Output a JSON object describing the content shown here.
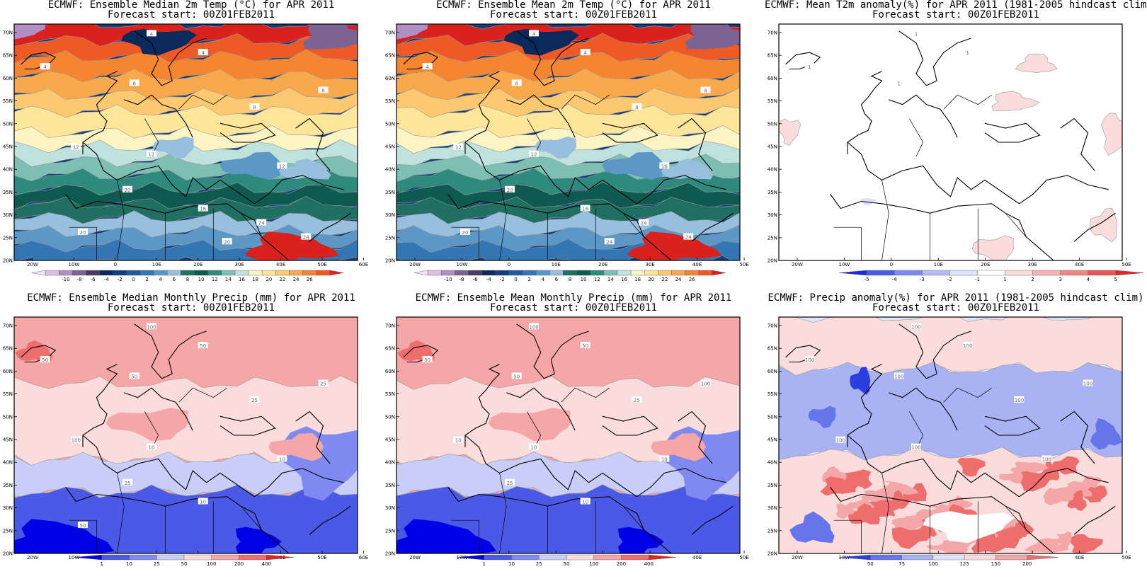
{
  "panels": [
    {
      "id": "temp-median",
      "title_line1": "ECMWF: Ensemble Median 2m Temp (°C) for APR 2011",
      "title_line2": "Forecast start: 00Z01FEB2011",
      "type": "temperature",
      "lon_labels": [
        "20W",
        "10W",
        "0",
        "10E",
        "20E",
        "30E",
        "40E",
        "50E",
        "60E"
      ],
      "lat_labels": [
        "20N",
        "25N",
        "30N",
        "35N",
        "40N",
        "45N",
        "50N",
        "55N",
        "60N",
        "65N",
        "70N"
      ],
      "contour_labels": [
        "4",
        "4",
        "4",
        "8",
        "8",
        "8",
        "12",
        "12",
        "12",
        "16",
        "20",
        "20",
        "20",
        "24",
        "24"
      ],
      "colorbar": {
        "labels": [
          "-10",
          "-8",
          "-6",
          "-4",
          "-2",
          "0",
          "2",
          "4",
          "6",
          "8",
          "10",
          "12",
          "14",
          "16",
          "18",
          "20",
          "22",
          "24",
          "26"
        ],
        "colors": [
          "#f3e4f3",
          "#dcbfe0",
          "#b18fc4",
          "#7d6393",
          "#4a3a62",
          "#0b2a5c",
          "#143d7c",
          "#1e5a9c",
          "#3276b4",
          "#5b98c8",
          "#98bfdd",
          "#1f6f62",
          "#0f5a50",
          "#2e8a7c",
          "#7dbfb3",
          "#bfe2dc",
          "#fdf4c4",
          "#fde59a",
          "#fcc970",
          "#f9a84c",
          "#f5862f",
          "#ee5a25",
          "#d9221e"
        ]
      }
    },
    {
      "id": "temp-mean",
      "title_line1": "ECMWF: Ensemble Mean 2m Temp (°C) for APR 2011",
      "title_line2": "Forecast start: 00Z01FEB2011",
      "type": "temperature",
      "lon_labels": [
        "20W",
        "10W",
        "0",
        "10E",
        "20E",
        "30E",
        "40E",
        "50E"
      ],
      "lat_labels": [
        "20N",
        "25N",
        "30N",
        "35N",
        "40N",
        "45N",
        "50N",
        "55N",
        "60N",
        "65N",
        "70N"
      ],
      "contour_labels": [
        "4",
        "4",
        "4",
        "8",
        "8",
        "8",
        "12",
        "12",
        "16",
        "16",
        "20",
        "20",
        "24",
        "24",
        "24"
      ],
      "colorbar": {
        "labels": [
          "-10",
          "-8",
          "-6",
          "-4",
          "-2",
          "0",
          "2",
          "4",
          "6",
          "8",
          "10",
          "12",
          "14",
          "16",
          "18",
          "20",
          "22",
          "24",
          "26"
        ],
        "colors": [
          "#f3e4f3",
          "#dcbfe0",
          "#b18fc4",
          "#7d6393",
          "#4a3a62",
          "#0b2a5c",
          "#143d7c",
          "#1e5a9c",
          "#3276b4",
          "#5b98c8",
          "#98bfdd",
          "#1f6f62",
          "#0f5a50",
          "#2e8a7c",
          "#7dbfb3",
          "#bfe2dc",
          "#fdf4c4",
          "#fde59a",
          "#fcc970",
          "#f9a84c",
          "#f5862f",
          "#ee5a25",
          "#d9221e"
        ]
      }
    },
    {
      "id": "temp-anomaly",
      "title_line1": "ECMWF: Mean T2m anomaly(%) for APR 2011 (1981-2005 hindcast clim)",
      "title_line2": "Forecast start: 00Z01FEB2011",
      "type": "temp_anomaly",
      "lon_labels": [
        "20W",
        "10W",
        "0",
        "10E",
        "20E",
        "30E",
        "40E",
        "50E"
      ],
      "lat_labels": [
        "20N",
        "25N",
        "30N",
        "35N",
        "40N",
        "45N",
        "50N",
        "55N",
        "60N",
        "65N",
        "70N"
      ],
      "contour_labels": [
        "1",
        "1",
        "1",
        "1"
      ],
      "colorbar": {
        "labels": [
          "-5",
          "-4",
          "-3",
          "-2",
          "-1",
          "1",
          "2",
          "3",
          "4",
          "5"
        ],
        "colors": [
          "#1f2bd8",
          "#4a5ae6",
          "#7f8af0",
          "#b3baf6",
          "#dde1fb",
          "#ffffff",
          "#fbdcdc",
          "#f7b3b3",
          "#f08686",
          "#e85555",
          "#e02525"
        ]
      }
    },
    {
      "id": "precip-median",
      "title_line1": "ECMWF: Ensemble Median Monthly Precip (mm) for APR 2011",
      "title_line2": "Forecast start: 00Z01FEB2011",
      "type": "precip",
      "lon_labels": [
        "20W",
        "10W",
        "0",
        "10E",
        "20E",
        "30E",
        "40E",
        "50E",
        "60E"
      ],
      "lat_labels": [
        "20N",
        "25N",
        "30N",
        "35N",
        "40N",
        "45N",
        "50N",
        "55N",
        "60N",
        "65N",
        "70N"
      ],
      "contour_labels": [
        "100",
        "50",
        "50",
        "50",
        "25",
        "25",
        "100",
        "10",
        "10",
        "10",
        "25",
        "50"
      ],
      "colorbar": {
        "labels": [
          "1",
          "10",
          "25",
          "50",
          "100",
          "200",
          "400"
        ],
        "colors": [
          "#0000e6",
          "#4a5ae6",
          "#7f8af0",
          "#c8cef8",
          "#fbdcdc",
          "#f5a6a6",
          "#ee6e6e",
          "#e02525"
        ]
      }
    },
    {
      "id": "precip-mean",
      "title_line1": "ECMWF: Ensemble Mean Monthly Precip (mm) for APR 2011",
      "title_line2": "Forecast start: 00Z01FEB2011",
      "type": "precip",
      "lon_labels": [
        "20W",
        "10W",
        "0",
        "10E",
        "20E",
        "30E",
        "40E",
        "50E"
      ],
      "lat_labels": [
        "20N",
        "25N",
        "30N",
        "35N",
        "40N",
        "45N",
        "50N",
        "55N",
        "60N",
        "65N",
        "70N"
      ],
      "contour_labels": [
        "100",
        "50",
        "50",
        "50",
        "25",
        "100",
        "10",
        "10",
        "10",
        "10",
        "25"
      ],
      "colorbar": {
        "labels": [
          "1",
          "10",
          "25",
          "50",
          "100",
          "200",
          "400"
        ],
        "colors": [
          "#0000e6",
          "#4a5ae6",
          "#7f8af0",
          "#c8cef8",
          "#fbdcdc",
          "#f5a6a6",
          "#ee6e6e",
          "#e02525"
        ]
      }
    },
    {
      "id": "precip-anomaly",
      "title_line1": "ECMWF: Precip anomaly(%) for APR 2011 (1981-2005 hindcast clim)",
      "title_line2": "Forecast start: 00Z01FEB2011",
      "type": "precip_anomaly",
      "lon_labels": [
        "20W",
        "10W",
        "0",
        "10E",
        "20E",
        "30E",
        "40E",
        "50E"
      ],
      "lat_labels": [
        "20N",
        "25N",
        "30N",
        "35N",
        "40N",
        "45N",
        "50N",
        "55N",
        "60N",
        "65N",
        "70N"
      ],
      "contour_labels": [
        "100",
        "100",
        "100",
        "100",
        "100",
        "100",
        "100",
        "100",
        "100"
      ],
      "colorbar": {
        "labels": [
          "50",
          "75",
          "100",
          "125",
          "150",
          "200"
        ],
        "colors": [
          "#2a3fe0",
          "#6675ea",
          "#a9b2f3",
          "#dfe3fb",
          "#fbdcdc",
          "#f5a6a6",
          "#ee6e6e"
        ]
      }
    }
  ]
}
